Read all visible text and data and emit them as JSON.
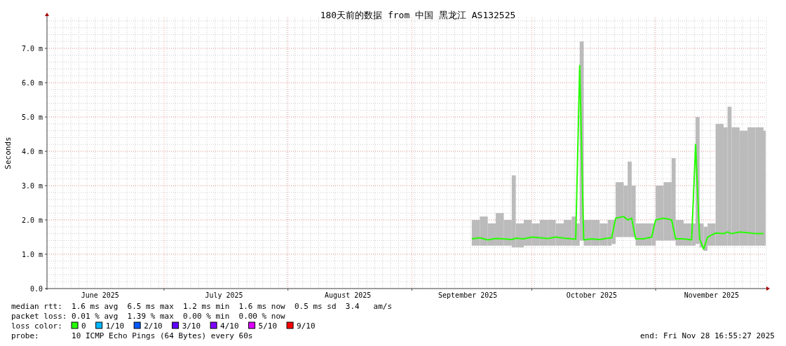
{
  "chart_data": {
    "type": "line",
    "title": "180天前的数据 from 中国 黑龙江 AS132525",
    "ylabel": "Seconds",
    "xlim": [
      "2025-06-01T16:55",
      "2025-11-28T16:55"
    ],
    "ylim": [
      0,
      7.9
    ],
    "xticks": [
      {
        "value": "2025-06-15",
        "label": "June 2025"
      },
      {
        "value": "2025-07-01",
        "label": null
      },
      {
        "value": "2025-07-16",
        "label": "July 2025"
      },
      {
        "value": "2025-08-01",
        "label": null
      },
      {
        "value": "2025-08-16",
        "label": "August 2025"
      },
      {
        "value": "2025-09-01",
        "label": null
      },
      {
        "value": "2025-09-15",
        "label": "September 2025"
      },
      {
        "value": "2025-10-01",
        "label": null
      },
      {
        "value": "2025-10-16",
        "label": "October 2025"
      },
      {
        "value": "2025-11-01",
        "label": null
      },
      {
        "value": "2025-11-15",
        "label": "November 2025"
      }
    ],
    "yticks": [
      {
        "value": 0,
        "label": "0.0"
      },
      {
        "value": 1,
        "label": "1.0 m"
      },
      {
        "value": 2,
        "label": "2.0 m"
      },
      {
        "value": 3,
        "label": "3.0 m"
      },
      {
        "value": 4,
        "label": "4.0 m"
      },
      {
        "value": 5,
        "label": "5.0 m"
      },
      {
        "value": 6,
        "label": "6.0 m"
      },
      {
        "value": 7,
        "label": "7.0 m"
      }
    ],
    "grid": true,
    "line_style": "solid",
    "series": [
      {
        "color": "#26ff00",
        "x": [
          "2025-09-16",
          "2025-09-18",
          "2025-09-20",
          "2025-09-22",
          "2025-09-24",
          "2025-09-26",
          "2025-09-27",
          "2025-09-29",
          "2025-10-01",
          "2025-10-03",
          "2025-10-05",
          "2025-10-07",
          "2025-10-09",
          "2025-10-11",
          "2025-10-12",
          "2025-10-13",
          "2025-10-14",
          "2025-10-16",
          "2025-10-18",
          "2025-10-20",
          "2025-10-21",
          "2025-10-22",
          "2025-10-24",
          "2025-10-25",
          "2025-10-26",
          "2025-10-27",
          "2025-10-29",
          "2025-10-31",
          "2025-11-01",
          "2025-11-03",
          "2025-11-05",
          "2025-11-06",
          "2025-11-08",
          "2025-11-10",
          "2025-11-11",
          "2025-11-12",
          "2025-11-13",
          "2025-11-14",
          "2025-11-16",
          "2025-11-18",
          "2025-11-19",
          "2025-11-20",
          "2025-11-22",
          "2025-11-24",
          "2025-11-26",
          "2025-11-28"
        ],
        "values": [
          1.45,
          1.48,
          1.42,
          1.46,
          1.45,
          1.43,
          1.47,
          1.45,
          1.5,
          1.48,
          1.46,
          1.5,
          1.47,
          1.45,
          1.44,
          6.5,
          1.42,
          1.45,
          1.43,
          1.47,
          1.48,
          2.05,
          2.1,
          2.0,
          2.05,
          1.45,
          1.45,
          1.5,
          2.0,
          2.05,
          2.0,
          1.45,
          1.45,
          1.42,
          4.2,
          1.45,
          1.15,
          1.5,
          1.62,
          1.6,
          1.65,
          1.6,
          1.65,
          1.63,
          1.6,
          1.6
        ],
        "lower": [
          1.25,
          1.25,
          1.25,
          1.25,
          1.25,
          1.2,
          1.2,
          1.25,
          1.25,
          1.25,
          1.25,
          1.25,
          1.25,
          1.25,
          1.25,
          1.4,
          1.25,
          1.25,
          1.25,
          1.25,
          1.3,
          1.5,
          1.5,
          1.5,
          1.5,
          1.25,
          1.25,
          1.25,
          1.4,
          1.4,
          1.4,
          1.25,
          1.25,
          1.25,
          1.3,
          1.2,
          1.1,
          1.25,
          1.25,
          1.25,
          1.25,
          1.25,
          1.25,
          1.25,
          1.25,
          1.25
        ],
        "upper": [
          2.0,
          2.1,
          1.9,
          2.2,
          2.0,
          3.3,
          1.9,
          2.0,
          1.9,
          2.0,
          2.0,
          1.9,
          2.0,
          2.1,
          1.9,
          7.2,
          2.0,
          2.0,
          1.9,
          2.0,
          2.0,
          3.1,
          3.0,
          3.7,
          3.0,
          1.9,
          1.9,
          1.9,
          3.0,
          3.1,
          3.8,
          2.0,
          1.9,
          1.9,
          5.0,
          1.9,
          1.8,
          1.9,
          4.8,
          4.7,
          5.3,
          4.7,
          4.6,
          4.7,
          4.7,
          4.6
        ]
      }
    ],
    "annotations": [
      "median rtt:  1.6 ms avg  6.5 ms max  1.2 ms min  1.6 ms now  0.5 ms sd  3.4   am/s",
      "packet loss: 0.01 % avg  1.39 % max  0.00 % min  0.00 % now",
      "loss color:",
      "0",
      "1/10",
      "2/10",
      "3/10",
      "4/10",
      "5/10",
      "9/10",
      "probe:       10 ICMP Echo Pings (64 Bytes) every 60s",
      "end: Fri Nov 28 16:55:27 2025"
    ]
  }
}
